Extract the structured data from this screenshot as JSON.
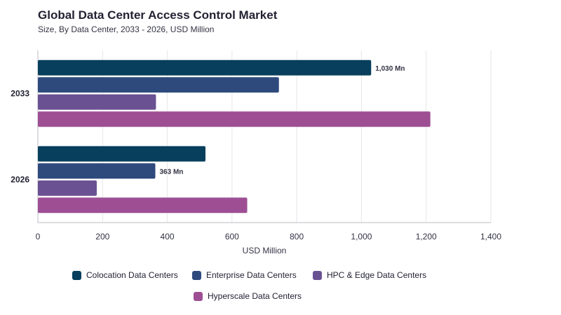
{
  "chart_data": {
    "type": "bar",
    "orientation": "horizontal",
    "title": "Global Data Center Access Control Market",
    "subtitle": "Size, By Data Center, 2033 - 2026, USD Million",
    "xlabel": "USD Million",
    "ylabel": "",
    "xlim": [
      0,
      1400
    ],
    "xticks": [
      "0",
      "200",
      "400",
      "600",
      "800",
      "1,000",
      "1,200",
      "1,400"
    ],
    "grid": true,
    "legend_position": "bottom",
    "categories": [
      "2033",
      "2026"
    ],
    "series": [
      {
        "name": "Colocation Data Centers",
        "color": "#073f5c",
        "values": [
          1030,
          518
        ]
      },
      {
        "name": "Enterprise Data Centers",
        "color": "#2e4a7d",
        "values": [
          745,
          363
        ]
      },
      {
        "name": "HPC & Edge Data Centers",
        "color": "#6a5192",
        "values": [
          365,
          182
        ]
      },
      {
        "name": "Hyperscale Data Centers",
        "color": "#9e4f94",
        "values": [
          1213,
          647
        ]
      }
    ],
    "annotations": [
      {
        "category": "2033",
        "series": "Colocation Data Centers",
        "text": "1,030 Mn"
      },
      {
        "category": "2026",
        "series": "Enterprise Data Centers",
        "text": "363 Mn"
      }
    ]
  }
}
